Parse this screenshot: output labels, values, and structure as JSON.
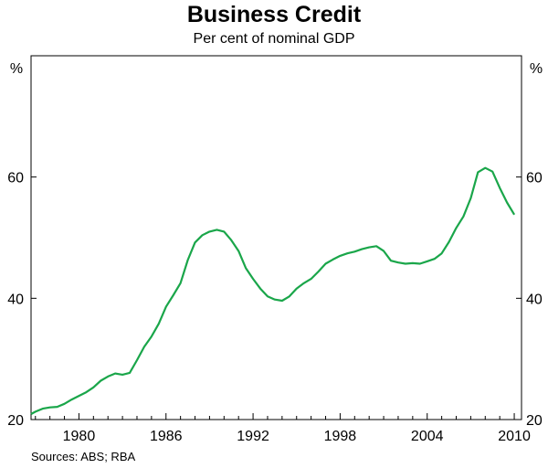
{
  "chart_data": {
    "type": "line",
    "title": "Business Credit",
    "subtitle": "Per cent of nominal GDP",
    "ylabel_left": "%",
    "ylabel_right": "%",
    "ylim": [
      20,
      80
    ],
    "yticks": [
      20,
      40,
      60
    ],
    "xlim": [
      1976.7,
      2010.5
    ],
    "xticks": [
      1980,
      1986,
      1992,
      1998,
      2004,
      2010
    ],
    "grid": false,
    "series_color": "#1aa64a",
    "series": [
      {
        "x": [
          1976.7,
          1977.0,
          1977.5,
          1978.0,
          1978.5,
          1979.0,
          1979.5,
          1980.0,
          1980.5,
          1981.0,
          1981.5,
          1982.0,
          1982.5,
          1983.0,
          1983.5,
          1984.0,
          1984.5,
          1985.0,
          1985.5,
          1986.0,
          1986.5,
          1987.0,
          1987.5,
          1988.0,
          1988.5,
          1989.0,
          1989.5,
          1990.0,
          1990.5,
          1991.0,
          1991.5,
          1992.0,
          1992.5,
          1993.0,
          1993.5,
          1994.0,
          1994.5,
          1995.0,
          1995.5,
          1996.0,
          1996.5,
          1997.0,
          1997.5,
          1998.0,
          1998.5,
          1999.0,
          1999.5,
          2000.0,
          2000.5,
          2001.0,
          2001.5,
          2002.0,
          2002.5,
          2003.0,
          2003.5,
          2004.0,
          2004.5,
          2005.0,
          2005.5,
          2006.0,
          2006.5,
          2007.0,
          2007.5,
          2008.0,
          2008.5,
          2009.0,
          2009.5,
          2010.0
        ],
        "values": [
          20.9,
          21.3,
          21.8,
          22.0,
          22.1,
          22.6,
          23.3,
          23.9,
          24.5,
          25.3,
          26.4,
          27.1,
          27.6,
          27.4,
          27.7,
          29.8,
          32.0,
          33.7,
          35.8,
          38.6,
          40.5,
          42.5,
          46.3,
          49.2,
          50.4,
          51.0,
          51.3,
          51.0,
          49.6,
          47.8,
          45.0,
          43.2,
          41.6,
          40.3,
          39.8,
          39.6,
          40.3,
          41.6,
          42.5,
          43.2,
          44.4,
          45.7,
          46.4,
          47.0,
          47.4,
          47.7,
          48.1,
          48.4,
          48.6,
          47.8,
          46.2,
          45.9,
          45.7,
          45.8,
          45.7,
          46.1,
          46.5,
          47.4,
          49.3,
          51.6,
          53.5,
          56.5,
          60.8,
          61.5,
          60.9,
          58.2,
          55.8,
          53.8
        ]
      }
    ],
    "source": "Sources: ABS; RBA"
  }
}
